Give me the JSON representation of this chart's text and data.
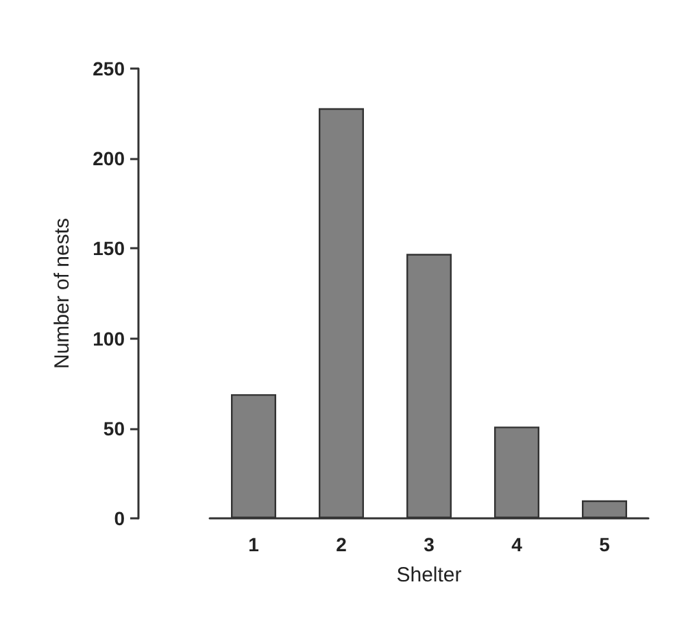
{
  "chart_data": {
    "type": "bar",
    "xlabel": "Shelter",
    "ylabel": "Number of nests",
    "categories": [
      "1",
      "2",
      "3",
      "4",
      "5"
    ],
    "values": [
      69,
      228,
      147,
      51,
      10
    ],
    "color": "#808080",
    "ylim": [
      0,
      250
    ],
    "yticks": [
      0,
      50,
      100,
      150,
      200,
      250
    ],
    "grid": false
  }
}
